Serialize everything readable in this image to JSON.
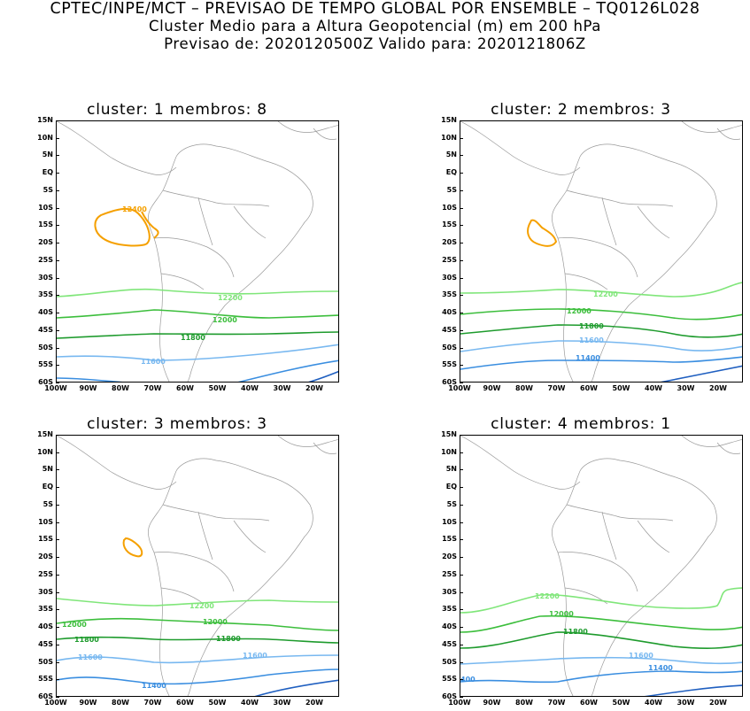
{
  "header": {
    "line1": "CPTEC/INPE/MCT – PREVISAO DE TEMPO GLOBAL POR ENSEMBLE – TQ0126L028",
    "line2": "Cluster Medio para a Altura Geopotencial (m) em 200 hPa",
    "line3": "Previsao de: 2020120500Z    Valido para: 2020121806Z"
  },
  "axes": {
    "lat_labels": [
      "15N",
      "10N",
      "5N",
      "EQ",
      "5S",
      "10S",
      "15S",
      "20S",
      "25S",
      "30S",
      "35S",
      "40S",
      "45S",
      "50S",
      "55S",
      "60S"
    ],
    "lon_labels": [
      "100W",
      "90W",
      "80W",
      "70W",
      "60W",
      "50W",
      "40W",
      "30W",
      "20W"
    ]
  },
  "colors": {
    "c12400": "#f5a000",
    "c12200": "#80e67a",
    "c12000": "#3cbe3c",
    "c11800": "#1e9b2d",
    "c11600": "#78b8f0",
    "c11400": "#3a8ee0",
    "c11200": "#1f5fc0",
    "coast": "#9a9a9a"
  },
  "panels": [
    {
      "title": "cluster: 1   membros: 8",
      "labels": {
        "l12400": "12400",
        "l12200": "12200",
        "l12000": "12000",
        "l11800": "11800",
        "l11600": "11600"
      }
    },
    {
      "title": "cluster: 2   membros: 3",
      "labels": {
        "l12200": "12200",
        "l12000": "12000",
        "l11800": "11800",
        "l11600": "11600",
        "l11400": "11400"
      }
    },
    {
      "title": "cluster: 3   membros: 3",
      "labels": {
        "l12200": "12200",
        "l12000a": "12000",
        "l12000b": "12000",
        "l11800": "11800",
        "l11600a": "11600",
        "l11600b": "11600",
        "l11400": "11400"
      }
    },
    {
      "title": "cluster: 4   membros: 1",
      "labels": {
        "l12200": "12200",
        "l12000": "12000",
        "l11800": "11800",
        "l11600": "11600",
        "l11400a": "11400",
        "l11400b": "400"
      }
    }
  ]
}
